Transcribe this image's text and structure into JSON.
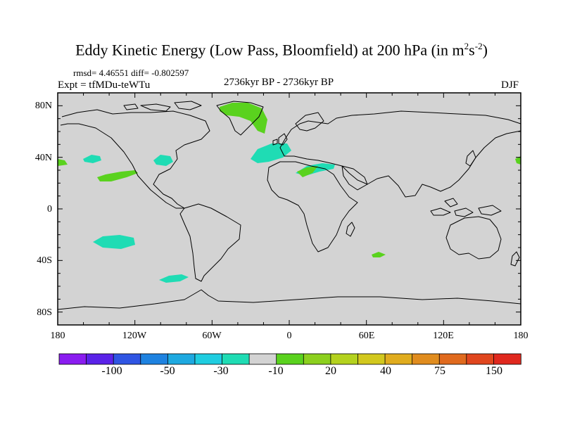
{
  "title": {
    "main": "Eddy Kinetic Energy (Low Pass, Bloomfield) at 200 hPa (in m",
    "exp1": "2",
    "mid": "s",
    "exp2": "-2",
    "end": ")"
  },
  "stats": "rmsd= 4.46551 diff= -0.802597",
  "experiment": "Expt = tfMDu-teWTu",
  "period": "2736kyr BP - 2736kyr BP",
  "season": "DJF",
  "map": {
    "background_color": "#d3d3d3",
    "lat_labels": [
      "80N",
      "40N",
      "0",
      "40S",
      "80S"
    ],
    "lon_labels": [
      "180",
      "120W",
      "60W",
      "0",
      "60E",
      "120E",
      "180"
    ]
  },
  "colorbar": {
    "colors": [
      "#8a1cf0",
      "#5a22e8",
      "#2f55e3",
      "#1e82e0",
      "#1ea9e0",
      "#1fcde0",
      "#1fdcb4",
      "#d3d3d3",
      "#5ad21e",
      "#8cd01e",
      "#b4d21e",
      "#d2c81e",
      "#e0ac1e",
      "#e08c1e",
      "#e06a1e",
      "#e0461e",
      "#e0281e"
    ],
    "labels": [
      "-100",
      "-50",
      "-30",
      "-10",
      "20",
      "40",
      "75",
      "150"
    ]
  }
}
